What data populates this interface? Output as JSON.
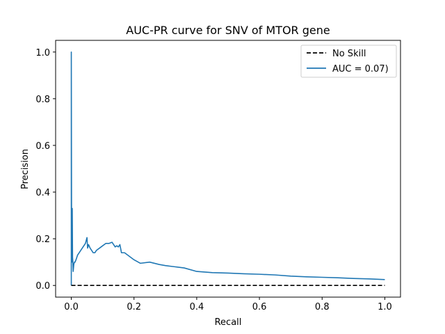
{
  "chart_data": {
    "type": "line",
    "title": "AUC-PR curve for SNV of MTOR gene",
    "xlabel": "Recall",
    "ylabel": "Precision",
    "xlim": [
      -0.05,
      1.05
    ],
    "ylim": [
      -0.05,
      1.05
    ],
    "xticks": [
      0.0,
      0.2,
      0.4,
      0.6,
      0.8,
      1.0
    ],
    "yticks": [
      0.0,
      0.2,
      0.4,
      0.6,
      0.8,
      1.0
    ],
    "xtick_labels": [
      "0.0",
      "0.2",
      "0.4",
      "0.6",
      "0.8",
      "1.0"
    ],
    "ytick_labels": [
      "0.0",
      "0.2",
      "0.4",
      "0.6",
      "0.8",
      "1.0"
    ],
    "grid": false,
    "legend_position": "top-right",
    "series": [
      {
        "name": "No Skill",
        "style": "dashed",
        "color": "#000000",
        "x": [
          0.0,
          1.0
        ],
        "y": [
          0.0,
          0.0
        ]
      },
      {
        "name": "AUC = 0.07)",
        "style": "solid",
        "color": "#1f77b4",
        "x": [
          0.0,
          0.0,
          0.001,
          0.001,
          0.002,
          0.002,
          0.003,
          0.004,
          0.005,
          0.006,
          0.008,
          0.01,
          0.012,
          0.015,
          0.02,
          0.025,
          0.03,
          0.035,
          0.04,
          0.045,
          0.05,
          0.052,
          0.055,
          0.06,
          0.065,
          0.07,
          0.075,
          0.08,
          0.09,
          0.1,
          0.11,
          0.12,
          0.13,
          0.135,
          0.14,
          0.145,
          0.15,
          0.155,
          0.16,
          0.17,
          0.18,
          0.19,
          0.2,
          0.22,
          0.25,
          0.28,
          0.3,
          0.33,
          0.36,
          0.4,
          0.45,
          0.5,
          0.55,
          0.6,
          0.65,
          0.7,
          0.75,
          0.8,
          0.85,
          0.9,
          0.95,
          1.0
        ],
        "y": [
          0.0,
          1.0,
          0.15,
          0.32,
          0.25,
          0.1,
          0.33,
          0.12,
          0.1,
          0.06,
          0.09,
          0.1,
          0.1,
          0.11,
          0.13,
          0.14,
          0.15,
          0.16,
          0.17,
          0.18,
          0.205,
          0.16,
          0.175,
          0.16,
          0.15,
          0.14,
          0.14,
          0.15,
          0.16,
          0.17,
          0.18,
          0.18,
          0.185,
          0.175,
          0.165,
          0.17,
          0.165,
          0.175,
          0.14,
          0.14,
          0.13,
          0.12,
          0.11,
          0.095,
          0.1,
          0.09,
          0.085,
          0.08,
          0.075,
          0.06,
          0.055,
          0.053,
          0.05,
          0.048,
          0.045,
          0.04,
          0.037,
          0.035,
          0.033,
          0.03,
          0.028,
          0.025
        ]
      }
    ]
  }
}
